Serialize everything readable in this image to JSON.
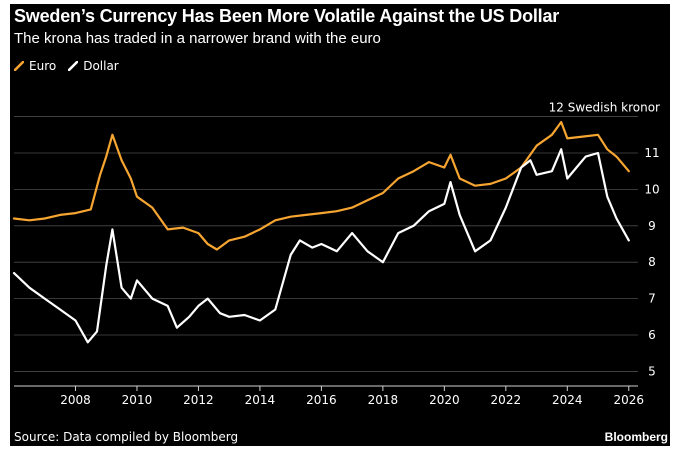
{
  "header": {
    "title": "Sweden’s Currency Has Been More Volatile Against the US Dollar",
    "subtitle": "The krona has traded in a narrower brand with the euro"
  },
  "footer": {
    "source": "Source: Data compiled by Bloomberg",
    "brand": "Bloomberg"
  },
  "colors": {
    "background": "#000000",
    "euro": "#f7a531",
    "dollar": "#ffffff",
    "grid": "#4a4a4a",
    "axis": "#d0d0d0"
  },
  "chart_data": {
    "type": "line",
    "title": "Sweden’s Currency Has Been More Volatile Against the US Dollar",
    "subtitle": "The krona has traded in a narrower brand with the euro",
    "unit_label": "12 Swedish kronor",
    "xlabel": "",
    "ylabel": "",
    "xlim": [
      2006.0,
      2026.3
    ],
    "ylim": [
      4.6,
      12.4
    ],
    "x_ticks": [
      2008,
      2010,
      2012,
      2014,
      2016,
      2018,
      2020,
      2022,
      2024,
      2026
    ],
    "x_tick_labels": [
      "2008",
      "2010",
      "2012",
      "2014",
      "2016",
      "2018",
      "2020",
      "2022",
      "2024",
      "2026"
    ],
    "y_ticks": [
      5,
      6,
      7,
      8,
      9,
      10,
      11
    ],
    "y_tick_labels": [
      "5",
      "6",
      "7",
      "8",
      "9",
      "10",
      "11"
    ],
    "y_axis_side": "right",
    "grid": true,
    "legend_position": "top-left",
    "series": [
      {
        "name": "Euro",
        "color": "#f7a531",
        "x": [
          2006.0,
          2006.5,
          2007.0,
          2007.5,
          2008.0,
          2008.5,
          2008.8,
          2009.0,
          2009.2,
          2009.5,
          2009.8,
          2010.0,
          2010.5,
          2011.0,
          2011.5,
          2012.0,
          2012.3,
          2012.6,
          2013.0,
          2013.5,
          2014.0,
          2014.5,
          2015.0,
          2015.5,
          2016.0,
          2016.5,
          2017.0,
          2017.5,
          2018.0,
          2018.5,
          2019.0,
          2019.5,
          2020.0,
          2020.2,
          2020.5,
          2021.0,
          2021.5,
          2022.0,
          2022.5,
          2023.0,
          2023.5,
          2023.8,
          2024.0,
          2024.5,
          2025.0,
          2025.3,
          2025.6,
          2026.0
        ],
        "values": [
          9.2,
          9.15,
          9.2,
          9.3,
          9.35,
          9.45,
          10.4,
          10.9,
          11.5,
          10.8,
          10.3,
          9.8,
          9.5,
          8.9,
          8.95,
          8.8,
          8.5,
          8.35,
          8.6,
          8.7,
          8.9,
          9.15,
          9.25,
          9.3,
          9.35,
          9.4,
          9.5,
          9.7,
          9.9,
          10.3,
          10.5,
          10.75,
          10.6,
          10.95,
          10.3,
          10.1,
          10.15,
          10.3,
          10.6,
          11.2,
          11.5,
          11.85,
          11.4,
          11.45,
          11.5,
          11.1,
          10.9,
          10.5
        ]
      },
      {
        "name": "Dollar",
        "color": "#ffffff",
        "x": [
          2006.0,
          2006.5,
          2007.0,
          2007.5,
          2008.0,
          2008.4,
          2008.7,
          2009.0,
          2009.2,
          2009.5,
          2009.8,
          2010.0,
          2010.5,
          2011.0,
          2011.3,
          2011.7,
          2012.0,
          2012.3,
          2012.7,
          2013.0,
          2013.5,
          2014.0,
          2014.5,
          2015.0,
          2015.3,
          2015.7,
          2016.0,
          2016.5,
          2017.0,
          2017.5,
          2018.0,
          2018.5,
          2019.0,
          2019.5,
          2020.0,
          2020.2,
          2020.5,
          2021.0,
          2021.5,
          2022.0,
          2022.5,
          2022.8,
          2023.0,
          2023.5,
          2023.8,
          2024.0,
          2024.3,
          2024.6,
          2025.0,
          2025.3,
          2025.6,
          2026.0
        ],
        "values": [
          7.7,
          7.3,
          7.0,
          6.7,
          6.4,
          5.8,
          6.1,
          7.9,
          8.9,
          7.3,
          7.0,
          7.5,
          7.0,
          6.8,
          6.2,
          6.5,
          6.8,
          7.0,
          6.6,
          6.5,
          6.55,
          6.4,
          6.7,
          8.2,
          8.6,
          8.4,
          8.5,
          8.3,
          8.8,
          8.3,
          8.0,
          8.8,
          9.0,
          9.4,
          9.6,
          10.2,
          9.3,
          8.3,
          8.6,
          9.5,
          10.6,
          10.8,
          10.4,
          10.5,
          11.1,
          10.3,
          10.6,
          10.9,
          11.0,
          9.8,
          9.2,
          8.6
        ]
      }
    ]
  }
}
